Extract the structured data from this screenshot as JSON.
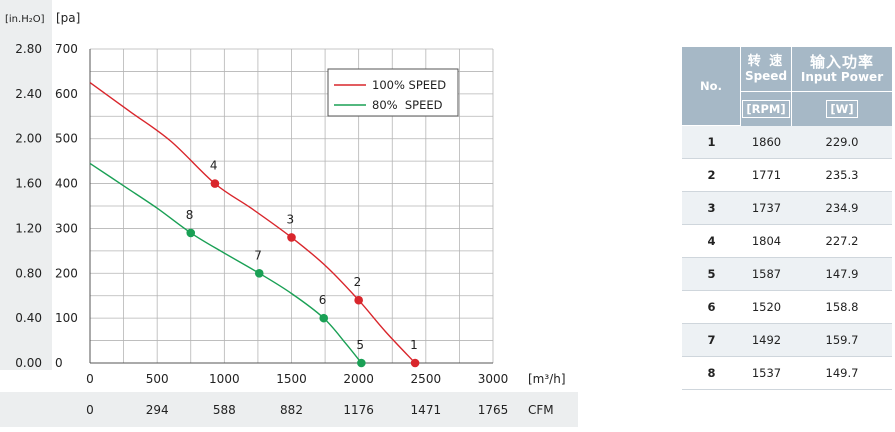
{
  "chart_data": {
    "type": "line",
    "xlabel_unit": "[m³/h]",
    "x2label_unit": "CFM",
    "y_inh2o_unit": "[in.H₂O]",
    "y_pa_unit": "[pa]",
    "x_ticks": [
      0,
      500,
      1000,
      1500,
      2000,
      2500,
      3000
    ],
    "x_cfm_ticks": [
      "0",
      "294",
      "588",
      "882",
      "1176",
      "1471",
      "1765"
    ],
    "y_ticks": [
      0,
      100,
      200,
      300,
      400,
      500,
      600,
      700
    ],
    "y_inh2o_ticks": [
      "0.00",
      "0.40",
      "0.80",
      "1.20",
      "1.60",
      "2.00",
      "2.40",
      "2.80"
    ],
    "xlim": [
      0,
      3000
    ],
    "ylim": [
      0,
      700
    ],
    "grid": true,
    "legend_position": "top-right",
    "series": [
      {
        "name": "100% SPEED",
        "color": "#d9262c",
        "curve": [
          [
            0,
            625
          ],
          [
            300,
            560
          ],
          [
            600,
            495
          ],
          [
            930,
            400
          ],
          [
            1200,
            345
          ],
          [
            1500,
            280
          ],
          [
            1760,
            215
          ],
          [
            2000,
            140
          ],
          [
            2200,
            70
          ],
          [
            2420,
            0
          ]
        ],
        "points": [
          {
            "label": "1",
            "x": 2420,
            "y": 0
          },
          {
            "label": "2",
            "x": 2000,
            "y": 140
          },
          {
            "label": "3",
            "x": 1500,
            "y": 280
          },
          {
            "label": "4",
            "x": 930,
            "y": 400
          }
        ]
      },
      {
        "name": "80%  SPEED",
        "color": "#1aa055",
        "curve": [
          [
            0,
            445
          ],
          [
            250,
            395
          ],
          [
            500,
            345
          ],
          [
            750,
            290
          ],
          [
            1000,
            245
          ],
          [
            1260,
            200
          ],
          [
            1500,
            155
          ],
          [
            1740,
            100
          ],
          [
            1900,
            45
          ],
          [
            2020,
            0
          ]
        ],
        "points": [
          {
            "label": "5",
            "x": 2020,
            "y": 0
          },
          {
            "label": "6",
            "x": 1740,
            "y": 100
          },
          {
            "label": "7",
            "x": 1260,
            "y": 200
          },
          {
            "label": "8",
            "x": 750,
            "y": 290
          }
        ]
      }
    ]
  },
  "table": {
    "col_no": "No.",
    "col_speed_cn": "转 速",
    "col_speed_en": "Speed",
    "col_speed_unit": "[RPM]",
    "col_power_cn": "输入功率",
    "col_power_en": "Input Power",
    "col_power_unit": "[W]",
    "rows": [
      {
        "no": "1",
        "speed": "1860",
        "power": "229.0"
      },
      {
        "no": "2",
        "speed": "1771",
        "power": "235.3"
      },
      {
        "no": "3",
        "speed": "1737",
        "power": "234.9"
      },
      {
        "no": "4",
        "speed": "1804",
        "power": "227.2"
      },
      {
        "no": "5",
        "speed": "1587",
        "power": "147.9"
      },
      {
        "no": "6",
        "speed": "1520",
        "power": "158.8"
      },
      {
        "no": "7",
        "speed": "1492",
        "power": "159.7"
      },
      {
        "no": "8",
        "speed": "1537",
        "power": "149.7"
      }
    ]
  }
}
